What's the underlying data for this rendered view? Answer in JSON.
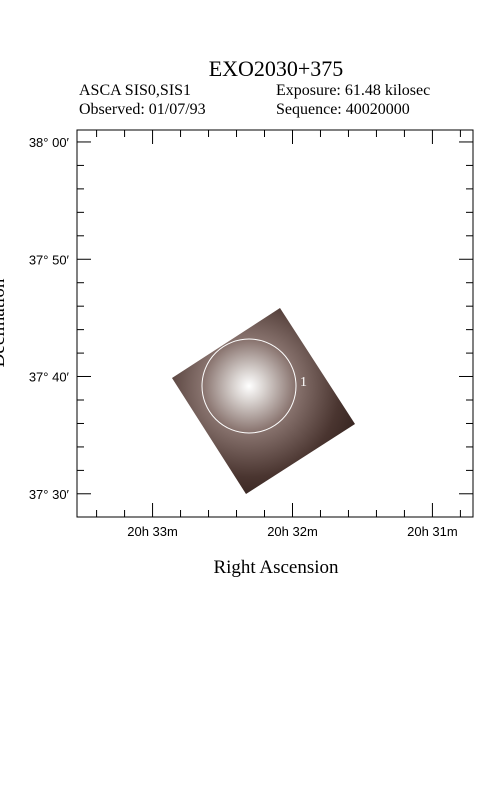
{
  "chart_data": {
    "type": "image",
    "title": "EXO2030+375",
    "instrument": "ASCA SIS0,SIS1",
    "exposure": "Exposure: 61.48 kilosec",
    "observed": "Observed: 01/07/93",
    "sequence": "Sequence: 40020000",
    "xlabel": "Right Ascension",
    "ylabel": "Declination",
    "region_label": "1",
    "xlim": [
      1233.54,
      1230.71
    ],
    "xticks": [
      {
        "value": 1233,
        "label": "20h 33m"
      },
      {
        "value": 1232,
        "label": "20h 32m"
      },
      {
        "value": 1231,
        "label": "20h 31m"
      }
    ],
    "ylim": [
      37.467,
      38.017
    ],
    "yticks": [
      {
        "value": 38.0,
        "label": "38° 00′"
      },
      {
        "value": 37.8333,
        "label": "37° 50′"
      },
      {
        "value": 37.6667,
        "label": "37° 40′"
      },
      {
        "value": 37.5,
        "label": "37° 30′"
      }
    ]
  }
}
